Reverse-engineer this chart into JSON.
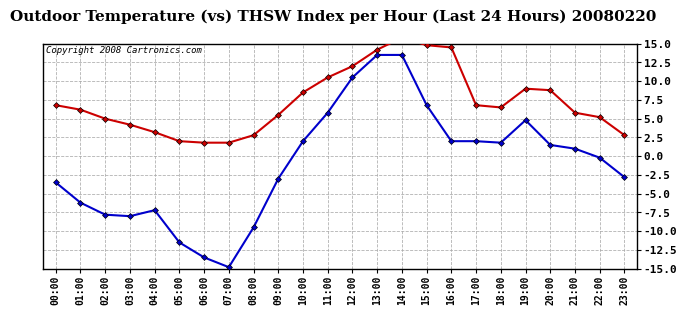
{
  "title": "Outdoor Temperature (vs) THSW Index per Hour (Last 24 Hours) 20080220",
  "copyright": "Copyright 2008 Cartronics.com",
  "hours": [
    "00:00",
    "01:00",
    "02:00",
    "03:00",
    "04:00",
    "05:00",
    "06:00",
    "07:00",
    "08:00",
    "09:00",
    "10:00",
    "11:00",
    "12:00",
    "13:00",
    "14:00",
    "15:00",
    "16:00",
    "17:00",
    "18:00",
    "19:00",
    "20:00",
    "21:00",
    "22:00",
    "23:00"
  ],
  "temp": [
    -3.5,
    -6.2,
    -7.8,
    -8.0,
    -7.2,
    -11.5,
    -13.5,
    -14.8,
    -9.5,
    -3.0,
    2.0,
    5.8,
    10.5,
    13.5,
    13.5,
    6.8,
    2.0,
    2.0,
    1.8,
    4.8,
    1.5,
    1.0,
    -0.2,
    -2.8
  ],
  "thsw": [
    6.8,
    6.2,
    5.0,
    4.2,
    3.2,
    2.0,
    1.8,
    1.8,
    2.8,
    5.5,
    8.5,
    10.5,
    12.0,
    14.2,
    15.8,
    14.8,
    14.5,
    6.8,
    6.5,
    9.0,
    8.8,
    5.8,
    5.2,
    2.8
  ],
  "temp_color": "#0000cc",
  "thsw_color": "#cc0000",
  "ylim": [
    -15.0,
    15.0
  ],
  "yticks": [
    -15.0,
    -12.5,
    -10.0,
    -7.5,
    -5.0,
    -2.5,
    0.0,
    2.5,
    5.0,
    7.5,
    10.0,
    12.5,
    15.0
  ],
  "bg_color": "#ffffff",
  "plot_bg": "#ffffff",
  "grid_color": "#aaaaaa",
  "title_fontsize": 11,
  "marker": "o",
  "marker_size": 3
}
